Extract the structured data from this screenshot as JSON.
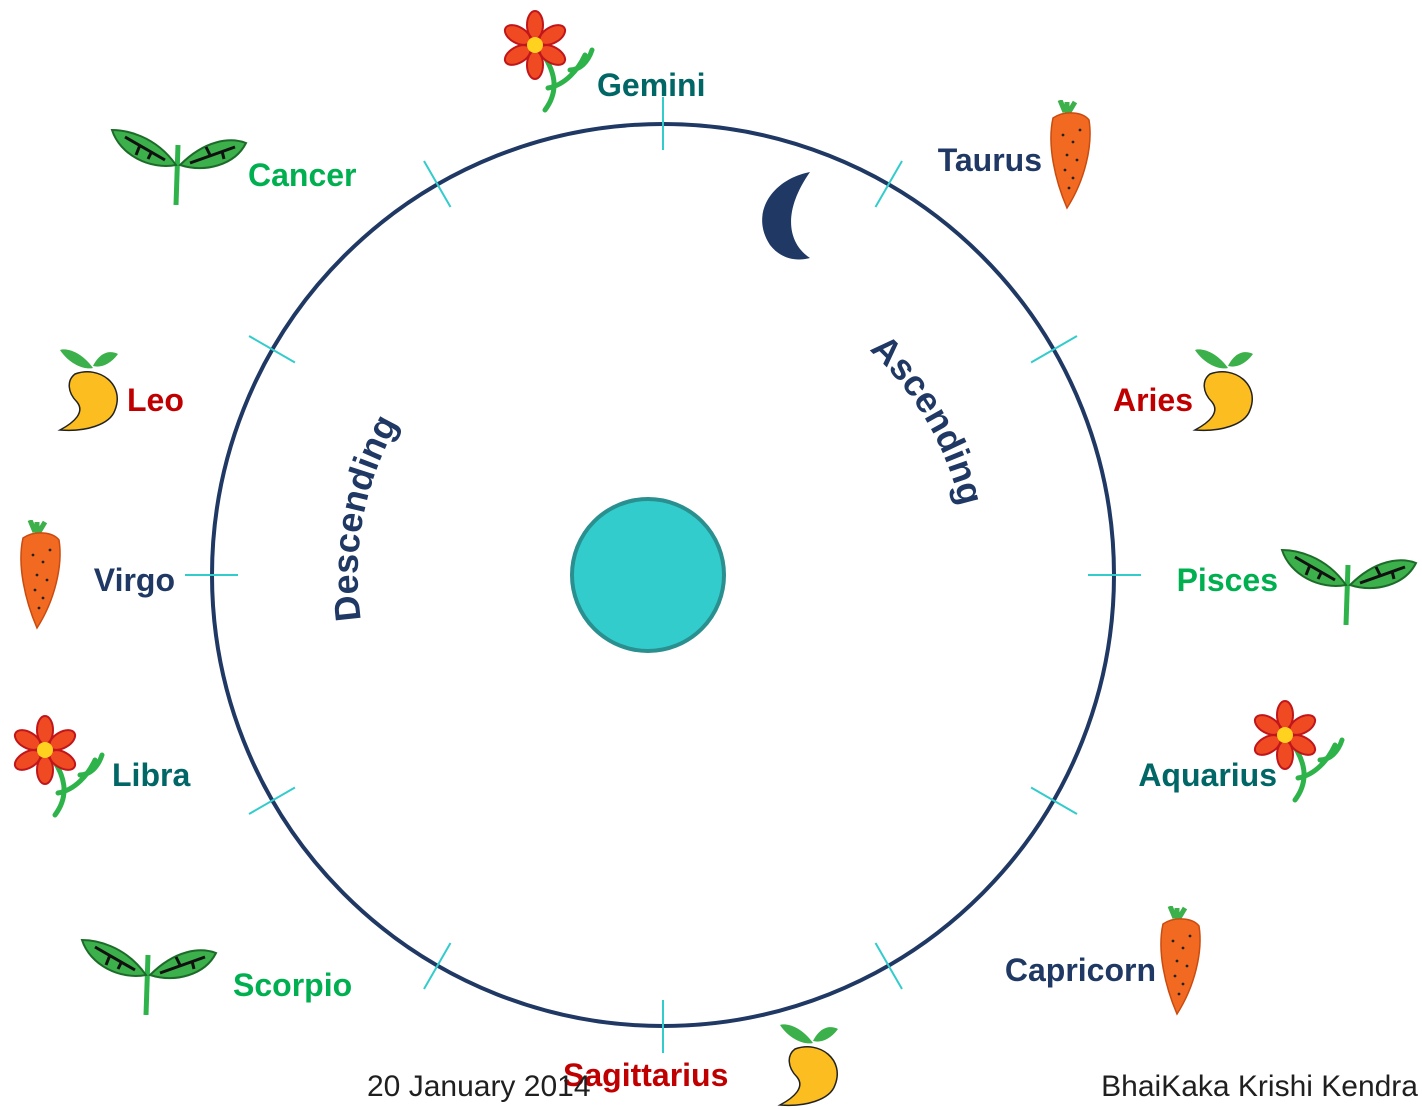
{
  "diagram": {
    "signs": [
      "Gemini",
      "Taurus",
      "Aries",
      "Pisces",
      "Aquarius",
      "Capricorn",
      "Sagittarius",
      "Scorpio",
      "Libra",
      "Virgo",
      "Leo",
      "Cancer"
    ],
    "descending": "Descending",
    "ascending": "Ascending"
  },
  "footer": {
    "date": "20 January 2014",
    "organization": "BhaiKaka Krishi Kendra"
  }
}
